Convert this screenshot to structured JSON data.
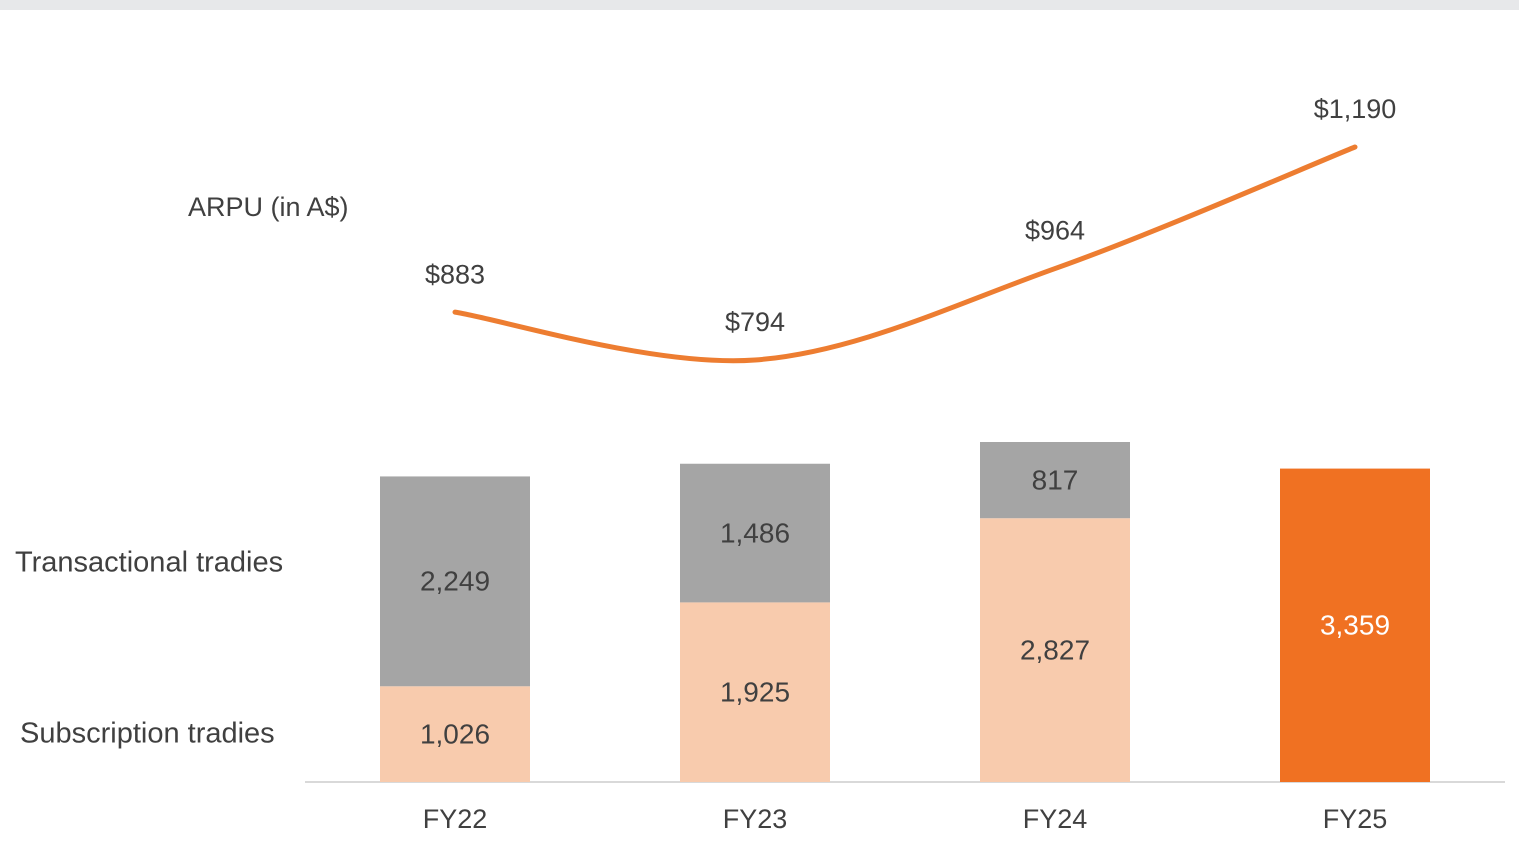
{
  "chart_data": {
    "type": "bar",
    "stacked": true,
    "categories": [
      "FY22",
      "FY23",
      "FY24",
      "FY25"
    ],
    "series": [
      {
        "name": "Subscription tradies",
        "colors": [
          "#f8cbad",
          "#f8cbad",
          "#f8cbad",
          "#f07122"
        ],
        "label_colors": [
          "#404040",
          "#404040",
          "#404040",
          "#ffffff"
        ],
        "values": [
          1026,
          1925,
          2827,
          3359
        ],
        "value_labels": [
          "1,026",
          "1,925",
          "2,827",
          "3,359"
        ]
      },
      {
        "name": "Transactional tradies",
        "colors": [
          "#a5a5a5",
          "#a5a5a5",
          "#a5a5a5",
          "#a5a5a5"
        ],
        "label_colors": [
          "#404040",
          "#404040",
          "#404040",
          "#404040"
        ],
        "values": [
          2249,
          1486,
          817,
          null
        ],
        "value_labels": [
          "2,249",
          "1,486",
          "817",
          null
        ]
      }
    ],
    "line": {
      "name": "ARPU (in A$)",
      "color": "#ed7d31",
      "values": [
        883,
        794,
        964,
        1190
      ],
      "value_labels": [
        "$883",
        "$794",
        "$964",
        "$1,190"
      ]
    }
  }
}
